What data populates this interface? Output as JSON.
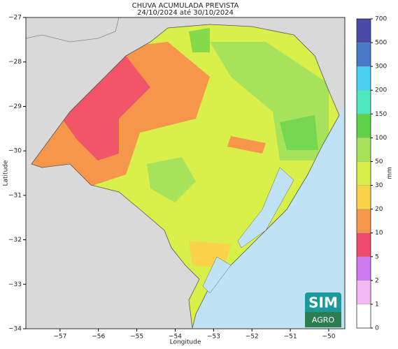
{
  "title": "CHUVA ACUMULADA PREVISTA",
  "subtitle": "24/10/2024 até 30/10/2024",
  "map": {
    "x_label": "Longitude",
    "y_label": "Latitude",
    "xlim": [
      -57.89,
      -49.58
    ],
    "ylim": [
      -34,
      -27
    ],
    "xticks": [
      {
        "value": -57,
        "label": "−57"
      },
      {
        "value": -56,
        "label": "−56"
      },
      {
        "value": -55,
        "label": "−55"
      },
      {
        "value": -54,
        "label": "−54"
      },
      {
        "value": -53,
        "label": "−53"
      },
      {
        "value": -52,
        "label": "−52"
      },
      {
        "value": -51,
        "label": "−51"
      },
      {
        "value": -50,
        "label": "−50"
      }
    ],
    "yticks": [
      {
        "value": -27,
        "label": "−27"
      },
      {
        "value": -28,
        "label": "−28"
      },
      {
        "value": -29,
        "label": "−29"
      },
      {
        "value": -30,
        "label": "−30"
      },
      {
        "value": -31,
        "label": "−31"
      },
      {
        "value": -32,
        "label": "−32"
      },
      {
        "value": -33,
        "label": "−33"
      },
      {
        "value": -34,
        "label": "−34"
      }
    ]
  },
  "colorbar": {
    "label": "mm",
    "levels": [
      0,
      1,
      2,
      5,
      10,
      20,
      30,
      50,
      100,
      150,
      200,
      300,
      500,
      700
    ],
    "colors": [
      "#ffffff",
      "#f2b9f2",
      "#cf7cf2",
      "#ef4b6c",
      "#f5964a",
      "#fbd34a",
      "#d9ef4a",
      "#a7e35a",
      "#5fd24a",
      "#4ee8c0",
      "#4ad0f0",
      "#4a78c8",
      "#4a4aa8"
    ]
  },
  "logo": {
    "top": "SIM",
    "bottom": "AGRO"
  }
}
